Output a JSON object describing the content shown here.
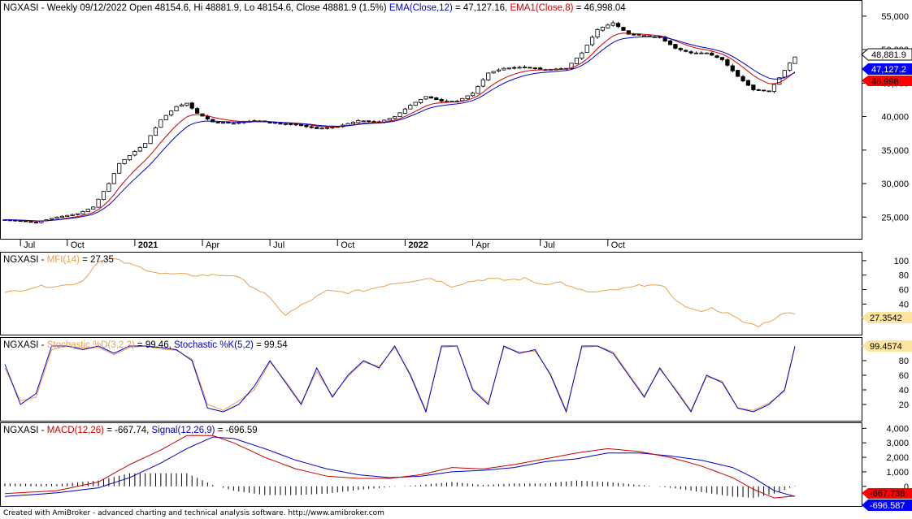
{
  "app": {
    "footer": "Created with AmiBroker - advanced charting and technical analysis software. http://www.amibroker.com"
  },
  "panes": {
    "price": {
      "symbol": "NGXASI",
      "info": " - Weekly 09/12/2022 Open 48154.6, Hi 48881.9, Lo 48154.6, Close 48881.9 (1.5%) ",
      "ema_label": "EMA(Close,12)",
      "ema_value": " = 47,127.16, ",
      "ema1_label": "EMA1(Close,8)",
      "ema1_value": " = 46,998.04",
      "tag_close": "48,881.9",
      "tag_ema": "47,127.2",
      "tag_ema1": "46,998",
      "y_ticks": [
        "55,000",
        "50,000",
        "45,000",
        "40,000",
        "35,000",
        "30,000",
        "25,000"
      ]
    },
    "mfi": {
      "symbol": "NGXASI",
      "label": "MFI(14)",
      "value": " = 27.35",
      "tag": "27.3542",
      "y_ticks": [
        "100",
        "80",
        "60",
        "40",
        "20"
      ]
    },
    "stoch": {
      "symbol": "NGXASI",
      "d_label": "Stochastic %D(3,2,2)",
      "d_value": " = 99.46, ",
      "k_label": "Stochastic %K(5,2)",
      "k_value": " = 99.54",
      "tag": "99.4574",
      "y_ticks": [
        "100",
        "80",
        "60",
        "40",
        "20"
      ]
    },
    "macd": {
      "symbol": "NGXASI",
      "macd_label": "MACD(12,26)",
      "macd_value": " = -667.74, ",
      "signal_label": "Signal(12,26,9)",
      "signal_value": " = -696.59",
      "tag_macd": "-667.738",
      "tag_signal": "-696.587",
      "y_ticks": [
        "4,000",
        "3,000",
        "2,000",
        "1,000",
        "0"
      ]
    }
  },
  "x_axis": [
    "Jul",
    "Oct",
    "2021",
    "Apr",
    "Jul",
    "Oct",
    "2022",
    "Apr",
    "Jul",
    "Oct"
  ],
  "colors": {
    "ema": "#0000cc",
    "ema1": "#cc0000",
    "mfi": "#e8a050",
    "stoch_d": "#e8a050",
    "stoch_k": "#0000cc",
    "tag_close_bg": "#ffffff",
    "tag_ema_bg": "#0000ff",
    "tag_ema1_bg": "#ff0000"
  },
  "chart_data": [
    {
      "type": "candlestick",
      "title": "NGXASI - Weekly",
      "y_scale_ticks": [
        25000,
        30000,
        35000,
        40000,
        45000,
        50000,
        55000
      ],
      "ylim": [
        22000,
        56800
      ],
      "anchors": [
        [
          0,
          24600
        ],
        [
          6,
          24200
        ],
        [
          10,
          25000
        ],
        [
          14,
          25500
        ],
        [
          17,
          26500
        ],
        [
          20,
          30000
        ],
        [
          22,
          33000
        ],
        [
          24,
          34200
        ],
        [
          27,
          36000
        ],
        [
          30,
          39500
        ],
        [
          33,
          41500
        ],
        [
          35,
          42000
        ],
        [
          37,
          40500
        ],
        [
          40,
          39200
        ],
        [
          44,
          39000
        ],
        [
          48,
          39400
        ],
        [
          52,
          39000
        ],
        [
          56,
          38800
        ],
        [
          60,
          38200
        ],
        [
          64,
          38500
        ],
        [
          68,
          39400
        ],
        [
          72,
          39200
        ],
        [
          75,
          40000
        ],
        [
          78,
          41700
        ],
        [
          81,
          43000
        ],
        [
          84,
          42300
        ],
        [
          87,
          42300
        ],
        [
          90,
          43500
        ],
        [
          93,
          46500
        ],
        [
          96,
          47200
        ],
        [
          100,
          47400
        ],
        [
          104,
          47000
        ],
        [
          108,
          47200
        ],
        [
          111,
          49500
        ],
        [
          114,
          53000
        ],
        [
          117,
          54000
        ],
        [
          120,
          52300
        ],
        [
          123,
          52100
        ],
        [
          126,
          51800
        ],
        [
          129,
          50200
        ],
        [
          132,
          49500
        ],
        [
          135,
          49500
        ],
        [
          138,
          48500
        ],
        [
          141,
          46000
        ],
        [
          144,
          44000
        ],
        [
          147,
          43800
        ],
        [
          149,
          45800
        ],
        [
          151,
          48000
        ],
        [
          152,
          48900
        ]
      ],
      "ema12_final": 47127.16,
      "ema8_final": 46998.04
    },
    {
      "type": "line",
      "series": [
        {
          "name": "MFI(14)",
          "anchors": [
            [
              0,
              55
            ],
            [
              6,
              64
            ],
            [
              12,
              66
            ],
            [
              15,
              72
            ],
            [
              18,
              100
            ],
            [
              21,
              102
            ],
            [
              24,
              95
            ],
            [
              30,
              82
            ],
            [
              36,
              80
            ],
            [
              44,
              80
            ],
            [
              50,
              54
            ],
            [
              54,
              25
            ],
            [
              58,
              42
            ],
            [
              62,
              58
            ],
            [
              66,
              56
            ],
            [
              70,
              60
            ],
            [
              74,
              68
            ],
            [
              78,
              72
            ],
            [
              82,
              76
            ],
            [
              86,
              65
            ],
            [
              90,
              72
            ],
            [
              93,
              75
            ],
            [
              96,
              73
            ],
            [
              100,
              75
            ],
            [
              103,
              68
            ],
            [
              107,
              70
            ],
            [
              110,
              60
            ],
            [
              113,
              56
            ],
            [
              116,
              58
            ],
            [
              120,
              62
            ],
            [
              124,
              68
            ],
            [
              127,
              62
            ],
            [
              130,
              40
            ],
            [
              133,
              30
            ],
            [
              136,
              34
            ],
            [
              139,
              27
            ],
            [
              142,
              15
            ],
            [
              145,
              10
            ],
            [
              148,
              20
            ],
            [
              151,
              30
            ],
            [
              152,
              27.35
            ]
          ]
        }
      ],
      "ylim": [
        0,
        110
      ]
    },
    {
      "type": "line",
      "series": [
        {
          "name": "Stochastic %K(5,2)",
          "anchors": [
            [
              0,
              75
            ],
            [
              3,
              20
            ],
            [
              6,
              35
            ],
            [
              9,
              100
            ],
            [
              12,
              100
            ],
            [
              15,
              95
            ],
            [
              18,
              100
            ],
            [
              21,
              90
            ],
            [
              24,
              100
            ],
            [
              27,
              100
            ],
            [
              30,
              98
            ],
            [
              33,
              95
            ],
            [
              36,
              80
            ],
            [
              39,
              15
            ],
            [
              42,
              10
            ],
            [
              45,
              20
            ],
            [
              48,
              45
            ],
            [
              51,
              80
            ],
            [
              54,
              50
            ],
            [
              57,
              20
            ],
            [
              60,
              70
            ],
            [
              63,
              30
            ],
            [
              66,
              60
            ],
            [
              69,
              80
            ],
            [
              72,
              70
            ],
            [
              75,
              100
            ],
            [
              78,
              60
            ],
            [
              81,
              10
            ],
            [
              84,
              100
            ],
            [
              87,
              100
            ],
            [
              90,
              40
            ],
            [
              93,
              20
            ],
            [
              96,
              100
            ],
            [
              99,
              90
            ],
            [
              102,
              95
            ],
            [
              105,
              60
            ],
            [
              108,
              10
            ],
            [
              111,
              100
            ],
            [
              114,
              100
            ],
            [
              117,
              90
            ],
            [
              120,
              60
            ],
            [
              123,
              30
            ],
            [
              126,
              70
            ],
            [
              129,
              40
            ],
            [
              132,
              10
            ],
            [
              135,
              60
            ],
            [
              138,
              50
            ],
            [
              141,
              15
            ],
            [
              144,
              10
            ],
            [
              147,
              20
            ],
            [
              150,
              40
            ],
            [
              152,
              99.54
            ]
          ]
        },
        {
          "name": "Stochastic %D(3,2,2)",
          "anchors": [
            [
              0,
              70
            ],
            [
              3,
              25
            ],
            [
              6,
              30
            ],
            [
              9,
              95
            ],
            [
              12,
              100
            ],
            [
              15,
              97
            ],
            [
              18,
              98
            ],
            [
              21,
              88
            ],
            [
              24,
              98
            ],
            [
              27,
              100
            ],
            [
              30,
              96
            ],
            [
              33,
              94
            ],
            [
              36,
              82
            ],
            [
              39,
              20
            ],
            [
              42,
              12
            ],
            [
              45,
              25
            ],
            [
              48,
              40
            ],
            [
              51,
              78
            ],
            [
              54,
              52
            ],
            [
              57,
              22
            ],
            [
              60,
              65
            ],
            [
              63,
              32
            ],
            [
              66,
              58
            ],
            [
              69,
              78
            ],
            [
              72,
              72
            ],
            [
              75,
              98
            ],
            [
              78,
              62
            ],
            [
              81,
              12
            ],
            [
              84,
              98
            ],
            [
              87,
              100
            ],
            [
              90,
              42
            ],
            [
              93,
              22
            ],
            [
              96,
              98
            ],
            [
              99,
              92
            ],
            [
              102,
              93
            ],
            [
              105,
              62
            ],
            [
              108,
              12
            ],
            [
              111,
              98
            ],
            [
              114,
              100
            ],
            [
              117,
              92
            ],
            [
              120,
              62
            ],
            [
              123,
              32
            ],
            [
              126,
              68
            ],
            [
              129,
              42
            ],
            [
              132,
              12
            ],
            [
              135,
              58
            ],
            [
              138,
              52
            ],
            [
              141,
              15
            ],
            [
              144,
              12
            ],
            [
              147,
              22
            ],
            [
              150,
              38
            ],
            [
              152,
              99.46
            ]
          ]
        }
      ],
      "ylim": [
        0,
        110
      ]
    },
    {
      "type": "line",
      "series": [
        {
          "name": "MACD(12,26)",
          "anchors": [
            [
              0,
              -500
            ],
            [
              10,
              -300
            ],
            [
              18,
              300
            ],
            [
              24,
              1500
            ],
            [
              30,
              2500
            ],
            [
              35,
              3500
            ],
            [
              40,
              3500
            ],
            [
              44,
              3000
            ],
            [
              50,
              2000
            ],
            [
              56,
              1200
            ],
            [
              62,
              700
            ],
            [
              68,
              550
            ],
            [
              74,
              550
            ],
            [
              80,
              800
            ],
            [
              86,
              1300
            ],
            [
              92,
              1200
            ],
            [
              98,
              1500
            ],
            [
              104,
              1900
            ],
            [
              110,
              2300
            ],
            [
              116,
              2600
            ],
            [
              122,
              2400
            ],
            [
              128,
              2000
            ],
            [
              134,
              1400
            ],
            [
              140,
              600
            ],
            [
              144,
              -200
            ],
            [
              148,
              -800
            ],
            [
              152,
              -667.74
            ]
          ]
        },
        {
          "name": "Signal(12,26,9)",
          "anchors": [
            [
              0,
              -700
            ],
            [
              10,
              -450
            ],
            [
              18,
              -100
            ],
            [
              24,
              600
            ],
            [
              30,
              1600
            ],
            [
              35,
              2600
            ],
            [
              40,
              3400
            ],
            [
              44,
              3300
            ],
            [
              50,
              2600
            ],
            [
              56,
              1800
            ],
            [
              62,
              1200
            ],
            [
              68,
              800
            ],
            [
              74,
              600
            ],
            [
              80,
              700
            ],
            [
              86,
              1000
            ],
            [
              92,
              1100
            ],
            [
              98,
              1300
            ],
            [
              104,
              1700
            ],
            [
              110,
              1900
            ],
            [
              116,
              2300
            ],
            [
              122,
              2300
            ],
            [
              128,
              2100
            ],
            [
              134,
              1800
            ],
            [
              140,
              1300
            ],
            [
              144,
              600
            ],
            [
              148,
              -300
            ],
            [
              152,
              -696.59
            ]
          ]
        }
      ],
      "ylim": [
        -1300,
        4300
      ]
    }
  ]
}
